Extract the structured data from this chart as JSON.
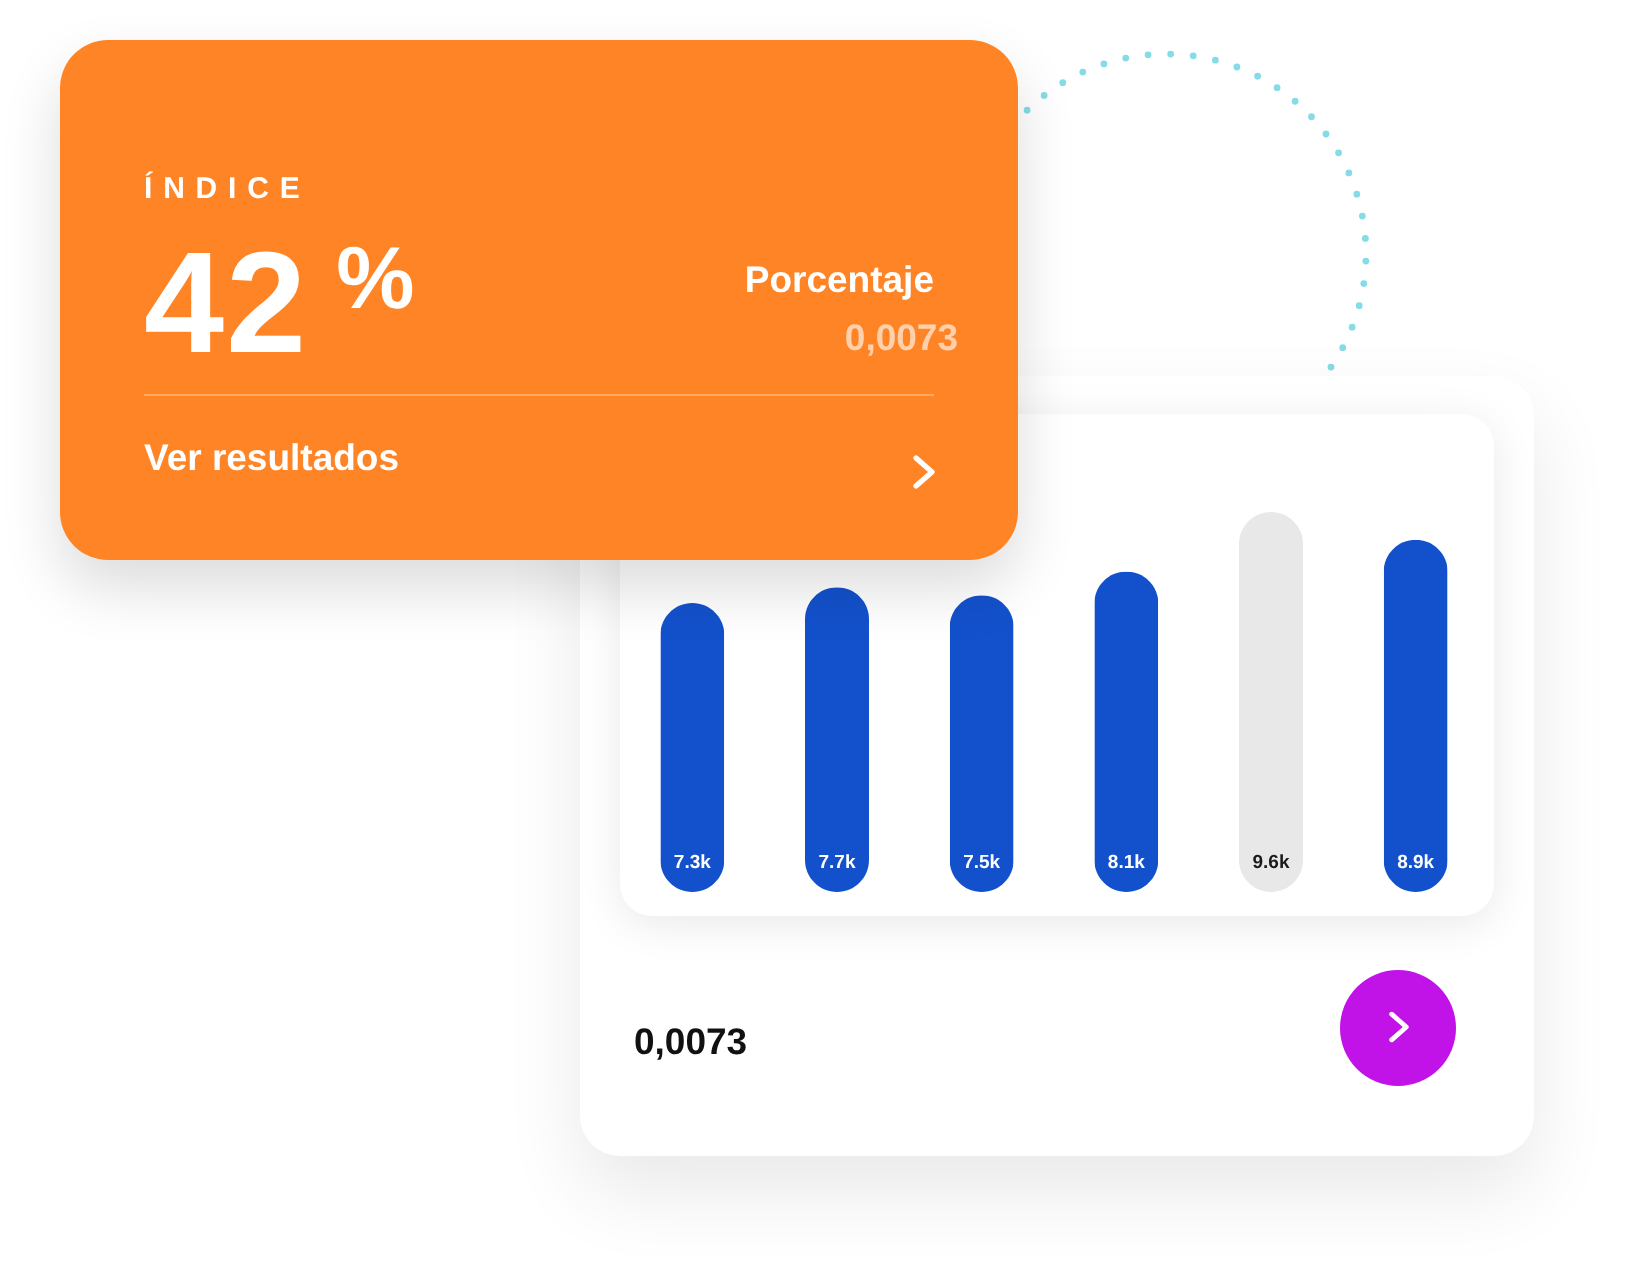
{
  "chart_data": [
    {
      "type": "other",
      "title": "ÍNDICE",
      "annotations": [
        "42 %",
        "Porcentaje",
        "0,0073",
        "Ver resultados"
      ]
    },
    {
      "type": "bar",
      "categories": [
        null,
        null,
        null,
        null,
        null,
        null
      ],
      "values": [
        7300,
        7700,
        7500,
        8100,
        9600,
        8900
      ],
      "value_labels": [
        "7.3k",
        "7.7k",
        "7.5k",
        "8.1k",
        "9.6k",
        "8.9k"
      ],
      "colors": [
        "#1351cc",
        "#1351cc",
        "#1351cc",
        "#1351cc",
        "#e8e8e8",
        "#1351cc"
      ],
      "tick_labels": false,
      "annotations": [
        "0,0073"
      ]
    }
  ]
}
